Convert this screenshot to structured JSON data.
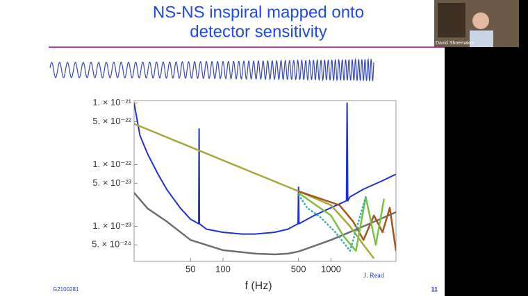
{
  "slide": {
    "title_lines": [
      "NS-NS inspiral mapped onto",
      "detector sensitivity"
    ],
    "footer_id": "G2100281",
    "page_number": "11"
  },
  "webcam": {
    "name": "David Shoemaker"
  },
  "chart_data": {
    "type": "line",
    "xlabel": "f (Hz)",
    "annotation": "J. Read",
    "xscale": "log",
    "yscale": "log",
    "xlim": [
      15,
      4000
    ],
    "ylim": [
      2.7e-24,
      1.1e-21
    ],
    "xticks": [
      50,
      100,
      500,
      1000
    ],
    "yticks": [
      {
        "value": 1e-21,
        "label": "1. × 10⁻²¹"
      },
      {
        "value": 5e-22,
        "label": "5. × 10⁻²²"
      },
      {
        "value": 1e-22,
        "label": "1. × 10⁻²²"
      },
      {
        "value": 5e-23,
        "label": "5. × 10⁻²³"
      },
      {
        "value": 1e-23,
        "label": "1. × 10⁻²³"
      },
      {
        "value": 5e-24,
        "label": "5. × 10⁻²⁴"
      }
    ],
    "series": [
      {
        "color": "#6d6d6d",
        "width": 2.5,
        "x": [
          15,
          20,
          30,
          50,
          100,
          200,
          300,
          400,
          500,
          700,
          1000,
          2000,
          4000
        ],
        "values": [
          3.5e-23,
          1.95e-23,
          1.2e-23,
          6e-24,
          4.1e-24,
          3.6e-24,
          3.5e-24,
          3.6e-24,
          3.9e-24,
          4.8e-24,
          6e-24,
          1e-23,
          1.7e-23
        ]
      },
      {
        "color": "#1f2fd6",
        "width": 2,
        "x": [
          15,
          17,
          20,
          25,
          30,
          40,
          50,
          59.5,
          60,
          60.5,
          70,
          100,
          150,
          200,
          300,
          400,
          495,
          500,
          505,
          700,
          1000,
          1390,
          1410,
          1430,
          1500,
          2000,
          3000,
          4000
        ],
        "values": [
          1e-21,
          3e-22,
          1.5e-22,
          7e-23,
          4e-23,
          2e-23,
          1.3e-23,
          1.1e-23,
          3.8e-22,
          1.1e-23,
          9e-24,
          8e-24,
          7.5e-24,
          7.5e-24,
          8e-24,
          9e-24,
          1.1e-23,
          4.3e-23,
          1.1e-23,
          1.5e-23,
          2e-23,
          2.6e-23,
          1e-21,
          2.6e-23,
          3e-23,
          4e-23,
          5.5e-23,
          7e-23
        ]
      },
      {
        "color": "#a6a83a",
        "width": 2.5,
        "x": [
          15,
          500,
          1000,
          1500,
          2000,
          2500
        ],
        "values": [
          4.6e-22,
          3.7e-23,
          2.2e-23,
          1e-23,
          5e-24,
          3e-24
        ]
      },
      {
        "color": "#a3551c",
        "width": 2.5,
        "x": [
          500,
          800,
          1200,
          1600,
          2000,
          2500,
          3000,
          3500,
          4000
        ],
        "values": [
          3.7e-23,
          2.8e-23,
          2.2e-23,
          1.2e-23,
          6e-24,
          1.5e-23,
          8e-24,
          2e-23,
          4e-24
        ]
      },
      {
        "color": "#7cc142",
        "width": 2.5,
        "x": [
          500,
          700,
          1000,
          1300,
          1700,
          2100,
          2600,
          3100
        ],
        "values": [
          3.5e-23,
          2.3e-23,
          1.5e-23,
          7e-24,
          4e-24,
          3e-23,
          5e-24,
          2.8e-23
        ]
      },
      {
        "color": "#38b0a8",
        "width": 2.5,
        "dash": true,
        "x": [
          500,
          600,
          800,
          1100,
          1500,
          1800,
          2100
        ],
        "values": [
          3.3e-23,
          2e-23,
          1.4e-23,
          8e-24,
          4e-24,
          1.2e-23,
          3e-23
        ]
      }
    ]
  }
}
